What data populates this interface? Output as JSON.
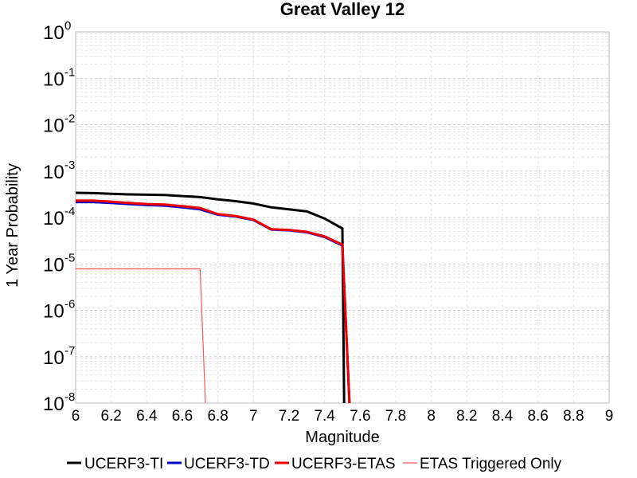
{
  "chart_data": {
    "type": "line",
    "title": "Great Valley 12",
    "xlabel": "Magnitude",
    "ylabel": "1 Year Probability",
    "xlim": [
      6,
      9
    ],
    "ylim": [
      1e-08,
      1
    ],
    "yscale": "log",
    "grid": true,
    "legend_position": "bottom",
    "x_ticks": [
      "6",
      "6.2",
      "6.4",
      "6.6",
      "6.8",
      "7",
      "7.2",
      "7.4",
      "7.6",
      "7.8",
      "8",
      "8.2",
      "8.4",
      "8.6",
      "8.8",
      "9"
    ],
    "y_ticks": [
      {
        "base": "10",
        "exp": "0"
      },
      {
        "base": "10",
        "exp": "-1"
      },
      {
        "base": "10",
        "exp": "-2"
      },
      {
        "base": "10",
        "exp": "-3"
      },
      {
        "base": "10",
        "exp": "-4"
      },
      {
        "base": "10",
        "exp": "-5"
      },
      {
        "base": "10",
        "exp": "-6"
      },
      {
        "base": "10",
        "exp": "-7"
      },
      {
        "base": "10",
        "exp": "-8"
      }
    ],
    "series": [
      {
        "name": "UCERF3-TI",
        "color": "#000000",
        "stroke_width": 3,
        "points": [
          [
            6.0,
            0.00034
          ],
          [
            6.1,
            0.000335
          ],
          [
            6.2,
            0.000325
          ],
          [
            6.3,
            0.000315
          ],
          [
            6.4,
            0.00031
          ],
          [
            6.5,
            0.000305
          ],
          [
            6.6,
            0.00029
          ],
          [
            6.7,
            0.000275
          ],
          [
            6.8,
            0.000245
          ],
          [
            6.9,
            0.000225
          ],
          [
            7.0,
            0.0002
          ],
          [
            7.1,
            0.000165
          ],
          [
            7.2,
            0.00015
          ],
          [
            7.3,
            0.000135
          ],
          [
            7.4,
            9.5e-05
          ],
          [
            7.5,
            5.8e-05
          ],
          [
            7.51,
            1e-08
          ]
        ]
      },
      {
        "name": "UCERF3-TD",
        "color": "#0000cc",
        "stroke_width": 3,
        "points": [
          [
            6.0,
            0.000215
          ],
          [
            6.1,
            0.000215
          ],
          [
            6.2,
            0.000205
          ],
          [
            6.3,
            0.000195
          ],
          [
            6.4,
            0.000185
          ],
          [
            6.5,
            0.00018
          ],
          [
            6.6,
            0.000165
          ],
          [
            6.7,
            0.00015
          ],
          [
            6.8,
            0.000115
          ],
          [
            6.9,
            0.000105
          ],
          [
            7.0,
            8.8e-05
          ],
          [
            7.1,
            5.5e-05
          ],
          [
            7.2,
            5.3e-05
          ],
          [
            7.3,
            4.8e-05
          ],
          [
            7.4,
            3.8e-05
          ],
          [
            7.5,
            2.5e-05
          ],
          [
            7.54,
            1e-08
          ]
        ]
      },
      {
        "name": "UCERF3-ETAS",
        "color": "#ee0000",
        "stroke_width": 3,
        "points": [
          [
            6.0,
            0.00023
          ],
          [
            6.1,
            0.00023
          ],
          [
            6.2,
            0.00022
          ],
          [
            6.3,
            0.000205
          ],
          [
            6.4,
            0.000195
          ],
          [
            6.5,
            0.00019
          ],
          [
            6.6,
            0.000175
          ],
          [
            6.7,
            0.00016
          ],
          [
            6.8,
            0.000118
          ],
          [
            6.9,
            0.000108
          ],
          [
            7.0,
            9e-05
          ],
          [
            7.1,
            5.6e-05
          ],
          [
            7.2,
            5.4e-05
          ],
          [
            7.3,
            4.9e-05
          ],
          [
            7.4,
            3.9e-05
          ],
          [
            7.5,
            2.6e-05
          ],
          [
            7.54,
            1e-08
          ]
        ]
      },
      {
        "name": "ETAS Triggered Only",
        "color": "#ff5555",
        "stroke_width": 1.2,
        "points": [
          [
            6.0,
            7.8e-06
          ],
          [
            6.7,
            7.8e-06
          ],
          [
            6.73,
            1e-08
          ]
        ]
      }
    ]
  }
}
